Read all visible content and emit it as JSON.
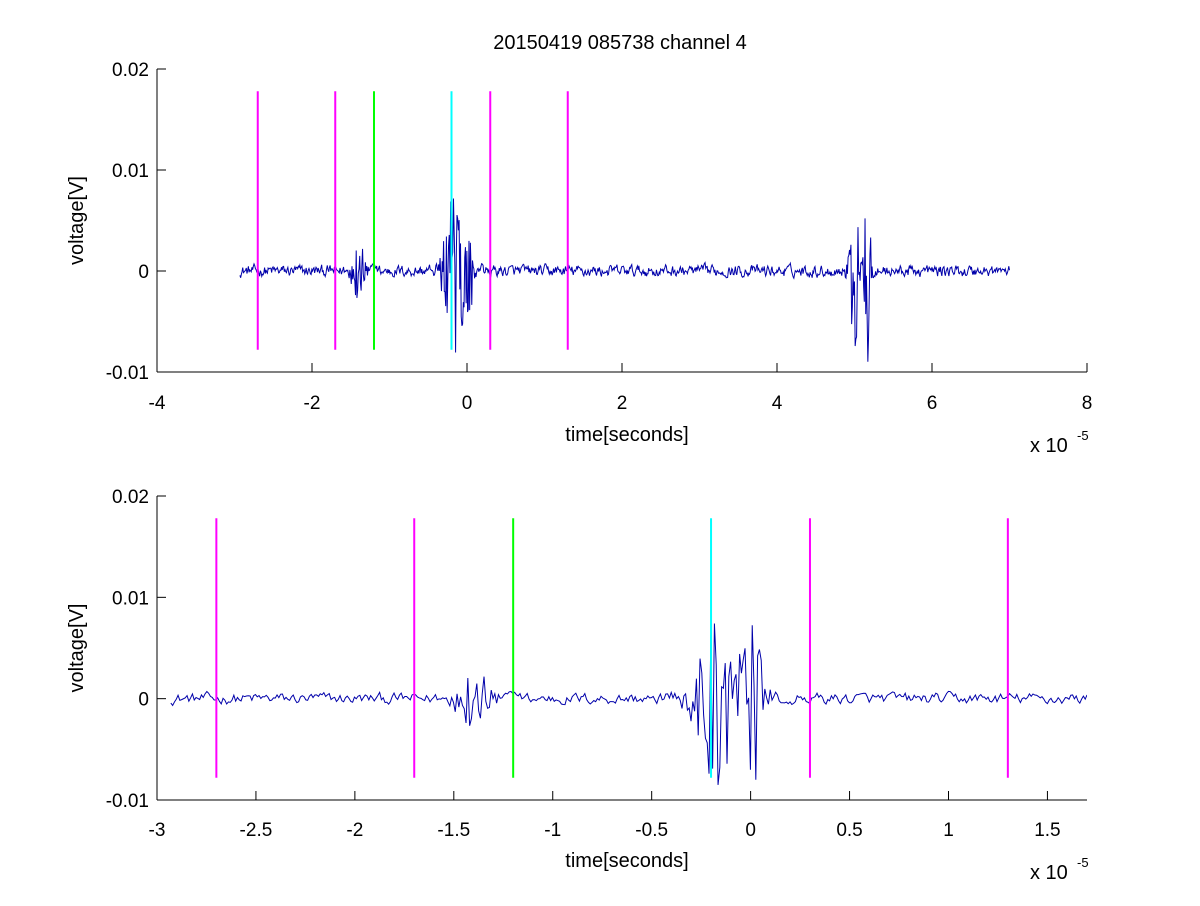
{
  "title": "20150419 085738 channel 4",
  "chart_data": [
    {
      "type": "line",
      "xlabel": "time[seconds]",
      "ylabel": "voltage[V]",
      "x_exponent": {
        "base_text": "x 10",
        "power_text": "-5"
      },
      "xlim": [
        -4,
        8
      ],
      "ylim": [
        -0.01,
        0.02
      ],
      "x_ticks": [
        -4,
        -2,
        0,
        2,
        4,
        6,
        8
      ],
      "x_tick_labels": [
        "-4",
        "-2",
        "0",
        "2",
        "4",
        "6",
        "8"
      ],
      "y_ticks": [
        -0.01,
        0,
        0.01,
        0.02
      ],
      "y_tick_labels": [
        "-0.01",
        "0",
        "0.01",
        "0.02"
      ],
      "grid": false,
      "signal": {
        "color": "#0000aa",
        "x_range": [
          -2.93,
          7.0
        ],
        "bursts": [
          {
            "x": -1.4,
            "width": 0.13,
            "amp": 0.0035
          },
          {
            "x": -0.15,
            "width": 0.22,
            "amp": 0.0095
          },
          {
            "x": 0.02,
            "width": 0.05,
            "amp": 0.016
          },
          {
            "x": 5.0,
            "width": 0.1,
            "amp": 0.0085
          },
          {
            "x": 5.17,
            "width": 0.06,
            "amp": 0.013
          }
        ]
      },
      "markers": [
        {
          "x": -2.7,
          "color": "#ff00ff",
          "y_range": [
            -0.0078,
            0.0178
          ]
        },
        {
          "x": -1.7,
          "color": "#ff00ff",
          "y_range": [
            -0.0078,
            0.0178
          ]
        },
        {
          "x": -1.2,
          "color": "#00ff00",
          "y_range": [
            -0.0078,
            0.0178
          ]
        },
        {
          "x": -0.2,
          "color": "#00ffff",
          "y_range": [
            -0.0078,
            0.0178
          ]
        },
        {
          "x": 0.3,
          "color": "#ff00ff",
          "y_range": [
            -0.0078,
            0.0178
          ]
        },
        {
          "x": 1.3,
          "color": "#ff00ff",
          "y_range": [
            -0.0078,
            0.0178
          ]
        }
      ]
    },
    {
      "type": "line",
      "xlabel": "time[seconds]",
      "ylabel": "voltage[V]",
      "x_exponent": {
        "base_text": "x 10",
        "power_text": "-5"
      },
      "xlim": [
        -3.0,
        1.7
      ],
      "ylim": [
        -0.01,
        0.02
      ],
      "x_ticks": [
        -3,
        -2.5,
        -2,
        -1.5,
        -1,
        -0.5,
        0,
        0.5,
        1,
        1.5
      ],
      "x_tick_labels": [
        "-3",
        "-2.5",
        "-2",
        "-1.5",
        "-1",
        "-0.5",
        "0",
        "0.5",
        "1",
        "1.5"
      ],
      "y_ticks": [
        -0.01,
        0,
        0.01,
        0.02
      ],
      "y_tick_labels": [
        "-0.01",
        "0",
        "0.01",
        "0.02"
      ],
      "grid": false,
      "signal": {
        "color": "#0000aa",
        "x_range": [
          -2.93,
          1.7
        ],
        "bursts": [
          {
            "x": -1.4,
            "width": 0.13,
            "amp": 0.0035
          },
          {
            "x": -0.15,
            "width": 0.22,
            "amp": 0.0095
          },
          {
            "x": 0.02,
            "width": 0.05,
            "amp": 0.016
          }
        ]
      },
      "markers": [
        {
          "x": -2.7,
          "color": "#ff00ff",
          "y_range": [
            -0.0078,
            0.0178
          ]
        },
        {
          "x": -1.7,
          "color": "#ff00ff",
          "y_range": [
            -0.0078,
            0.0178
          ]
        },
        {
          "x": -1.2,
          "color": "#00ff00",
          "y_range": [
            -0.0078,
            0.0178
          ]
        },
        {
          "x": -0.2,
          "color": "#00ffff",
          "y_range": [
            -0.0078,
            0.0178
          ]
        },
        {
          "x": 0.3,
          "color": "#ff00ff",
          "y_range": [
            -0.0078,
            0.0178
          ]
        },
        {
          "x": 1.3,
          "color": "#ff00ff",
          "y_range": [
            -0.0078,
            0.0178
          ]
        }
      ]
    }
  ]
}
